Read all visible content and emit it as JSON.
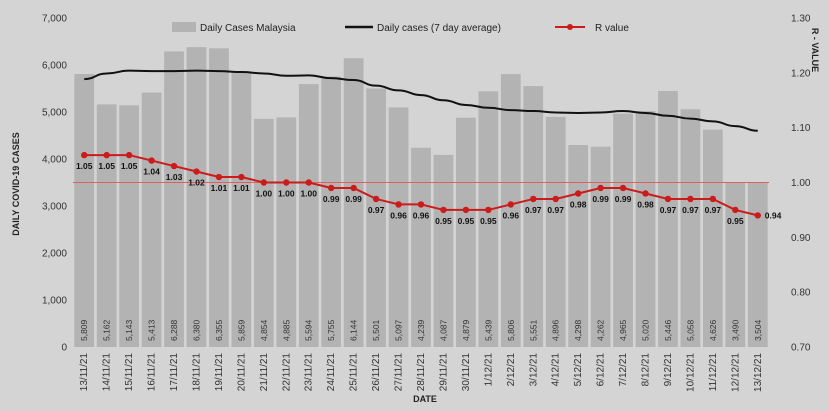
{
  "chart_data": {
    "type": "bar",
    "categories": [
      "13/11/21",
      "14/11/21",
      "15/11/21",
      "16/11/21",
      "17/11/21",
      "18/11/21",
      "19/11/21",
      "20/11/21",
      "21/11/21",
      "22/11/21",
      "23/11/21",
      "24/11/21",
      "25/11/21",
      "26/11/21",
      "27/11/21",
      "28/11/21",
      "29/11/21",
      "30/11/21",
      "1/12/21",
      "2/12/21",
      "3/12/21",
      "4/12/21",
      "5/12/21",
      "6/12/21",
      "7/12/21",
      "8/12/21",
      "9/12/21",
      "10/12/21",
      "11/12/21",
      "12/12/21",
      "13/12/21"
    ],
    "series": [
      {
        "name": "Daily Cases Malaysia",
        "type": "bar",
        "axis": "left",
        "color": "#b3b3b3",
        "values": [
          5809,
          5162,
          5143,
          5413,
          6288,
          6380,
          6355,
          5859,
          4854,
          4885,
          5594,
          5755,
          6144,
          5501,
          5097,
          4239,
          4087,
          4879,
          5439,
          5806,
          5551,
          4896,
          4298,
          4262,
          4965,
          5020,
          5446,
          5058,
          4626,
          3490,
          3504
        ],
        "labels": [
          "5,809",
          "5,162",
          "5,143",
          "5,413",
          "6,288",
          "6,380",
          "6,355",
          "5,859",
          "4,854",
          "4,885",
          "5,594",
          "5,755",
          "6,144",
          "5,501",
          "5,097",
          "4,239",
          "4,087",
          "4,879",
          "5,439",
          "5,806",
          "5,551",
          "4,896",
          "4,298",
          "4,262",
          "4,965",
          "5,020",
          "5,446",
          "5,058",
          "4,626",
          "3,490",
          "3,504"
        ]
      },
      {
        "name": "Daily cases (7 day average)",
        "type": "line",
        "axis": "left",
        "color": "#111111",
        "values": [
          5700,
          5820,
          5880,
          5870,
          5870,
          5880,
          5870,
          5850,
          5820,
          5770,
          5780,
          5720,
          5680,
          5560,
          5460,
          5360,
          5250,
          5150,
          5090,
          5040,
          5020,
          4990,
          4980,
          4990,
          5020,
          4980,
          4920,
          4860,
          4800,
          4700,
          4600
        ]
      },
      {
        "name": "R value",
        "type": "line",
        "axis": "right",
        "color": "#cc1b1b",
        "values": [
          1.05,
          1.05,
          1.05,
          1.04,
          1.03,
          1.02,
          1.01,
          1.01,
          1.0,
          1.0,
          1.0,
          0.99,
          0.99,
          0.97,
          0.96,
          0.96,
          0.95,
          0.95,
          0.95,
          0.96,
          0.97,
          0.97,
          0.98,
          0.99,
          0.99,
          0.98,
          0.97,
          0.97,
          0.97,
          0.95,
          0.94
        ],
        "labels": [
          "1.05",
          "1.05",
          "1.05",
          "1.04",
          "1.03",
          "1.02",
          "1.01",
          "1.01",
          "1.00",
          "1.00",
          "1.00",
          "0.99",
          "0.99",
          "0.97",
          "0.96",
          "0.96",
          "0.95",
          "0.95",
          "0.95",
          "0.96",
          "0.97",
          "0.97",
          "0.98",
          "0.99",
          "0.99",
          "0.98",
          "0.97",
          "0.97",
          "0.97",
          "0.95",
          "0.94"
        ]
      }
    ],
    "reference_line": {
      "axis": "right",
      "value": 1.0,
      "color": "#e06060"
    },
    "xlabel": "DATE",
    "ylabel": "DAILY COVID-19 CASES",
    "y2label": "R - VALUE",
    "ylim": [
      0,
      7000
    ],
    "y2lim": [
      0.7,
      1.3
    ],
    "yticks": [
      0,
      1000,
      2000,
      3000,
      4000,
      5000,
      6000,
      7000
    ],
    "yticklabels": [
      "0",
      "1,000",
      "2,000",
      "3,000",
      "4,000",
      "5,000",
      "6,000",
      "7,000"
    ],
    "y2ticks": [
      0.7,
      0.8,
      0.9,
      1.0,
      1.1,
      1.2,
      1.3
    ],
    "y2ticklabels": [
      "0.70",
      "0.80",
      "0.90",
      "1.00",
      "1.10",
      "1.20",
      "1.30"
    ],
    "legend_position": "top",
    "grid": false,
    "colors": {
      "background": "#d4d4d4",
      "bar": "#b3b3b3",
      "avg_line": "#111111",
      "r_line": "#cc1b1b"
    }
  }
}
